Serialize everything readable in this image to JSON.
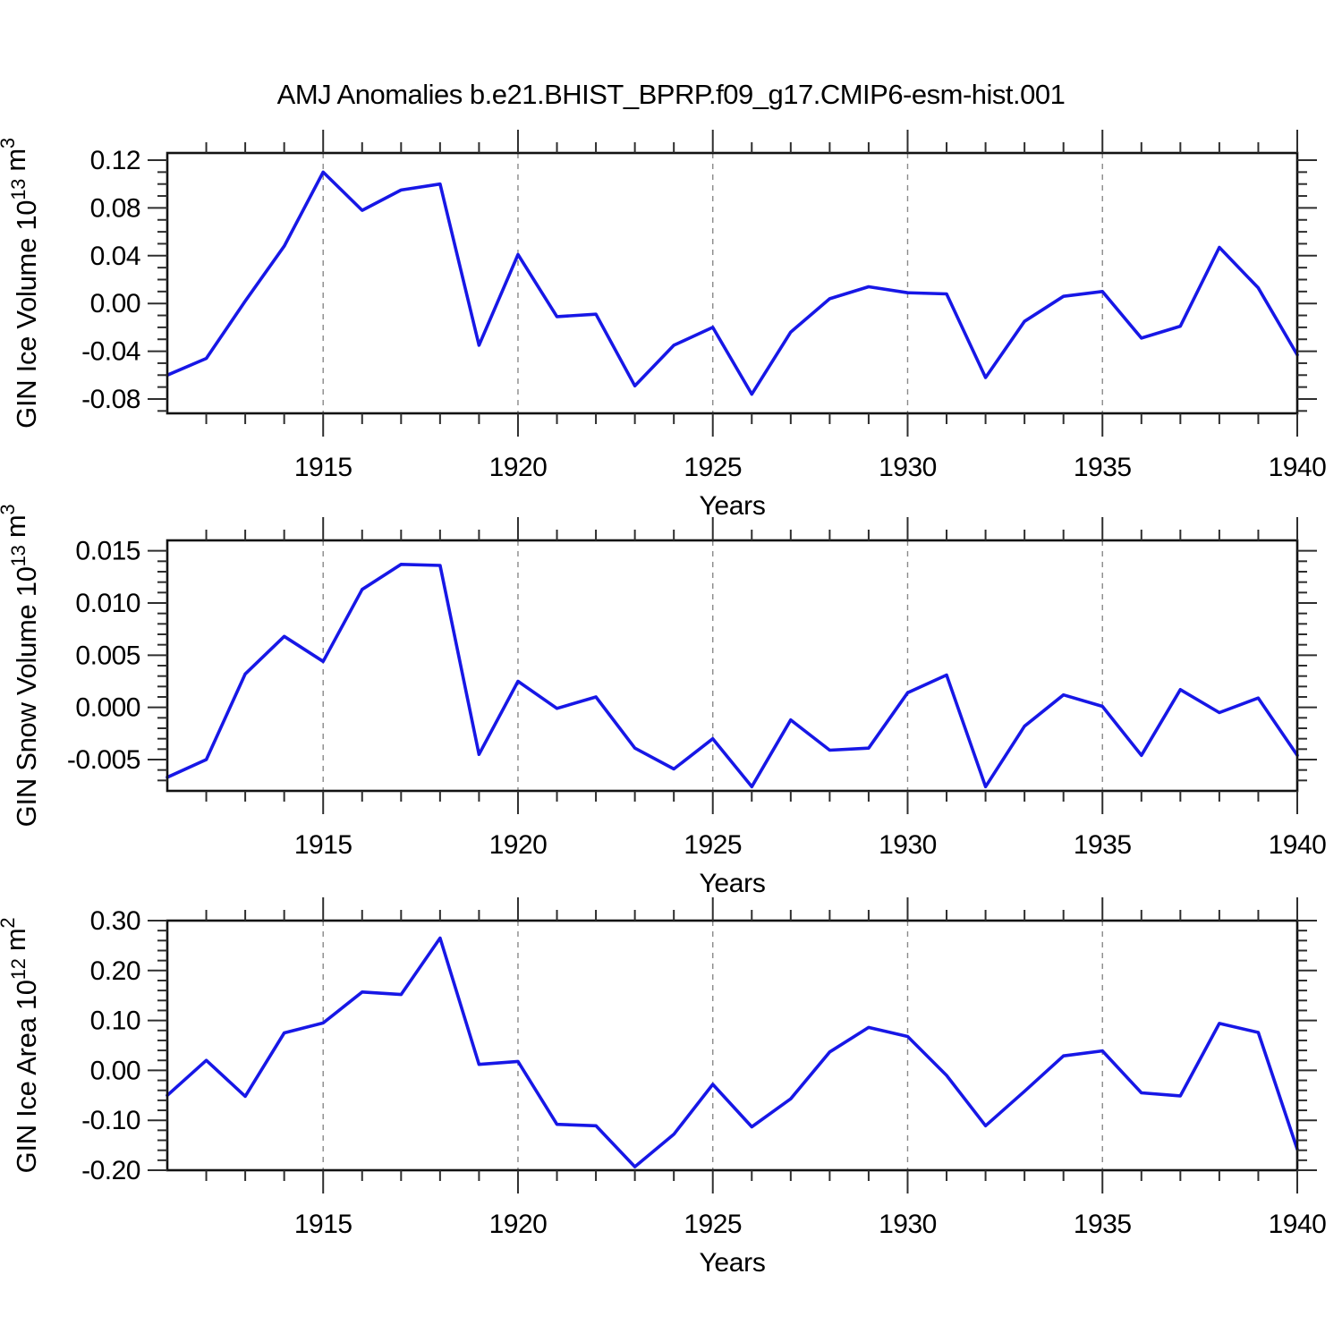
{
  "title": "AMJ Anomalies b.e21.BHIST_BPRP.f09_g17.CMIP6-esm-hist.001",
  "colors": {
    "line": "#1717e6",
    "axis": "#121212",
    "grid": "#8a8a8a",
    "tick": "#2e2e2e",
    "text": "#000000",
    "background": "#ffffff"
  },
  "chart_data": [
    {
      "type": "line",
      "title": "",
      "xlabel": "Years",
      "ylabel": "GIN Ice Volume 10^13 m^3",
      "ylabel_parts": [
        {
          "t": "GIN Ice Volume 10"
        },
        {
          "t": "13",
          "sup": true
        },
        {
          "t": " m"
        },
        {
          "t": "3",
          "sup": true
        }
      ],
      "x": [
        1911,
        1912,
        1913,
        1914,
        1915,
        1916,
        1917,
        1918,
        1919,
        1920,
        1921,
        1922,
        1923,
        1924,
        1925,
        1926,
        1927,
        1928,
        1929,
        1930,
        1931,
        1932,
        1933,
        1934,
        1935,
        1936,
        1937,
        1938,
        1939,
        1940
      ],
      "values": [
        -0.06,
        -0.046,
        0.002,
        0.048,
        0.11,
        0.078,
        0.095,
        0.1,
        -0.035,
        0.041,
        -0.011,
        -0.009,
        -0.069,
        -0.035,
        -0.02,
        -0.076,
        -0.024,
        0.004,
        0.014,
        0.009,
        0.008,
        -0.062,
        -0.015,
        0.006,
        0.01,
        -0.029,
        -0.019,
        0.047,
        0.013,
        -0.043
      ],
      "xlim": [
        1911,
        1940
      ],
      "ylim": [
        -0.092,
        0.126
      ],
      "xticks": [
        1915,
        1920,
        1925,
        1930,
        1935,
        1940
      ],
      "xtick_labels": [
        "1915",
        "1920",
        "1925",
        "1930",
        "1935",
        "1940"
      ],
      "x_minor_step": 1,
      "grid_years": [
        1915,
        1920,
        1925,
        1930,
        1935
      ],
      "ytick_values": [
        0.12,
        0.08,
        0.04,
        0.0,
        -0.04,
        -0.08
      ],
      "ytick_labels": [
        "0.12",
        "0.08",
        "0.04",
        "0.00",
        "-0.04",
        "-0.08"
      ],
      "y_minor_step": 0.01,
      "grid": true,
      "legend": "none"
    },
    {
      "type": "line",
      "title": "",
      "xlabel": "Years",
      "ylabel": "GIN Snow Volume 10^13 m^3",
      "ylabel_parts": [
        {
          "t": "GIN Snow Volume 10"
        },
        {
          "t": "13",
          "sup": true
        },
        {
          "t": " m"
        },
        {
          "t": "3",
          "sup": true
        }
      ],
      "x": [
        1911,
        1912,
        1913,
        1914,
        1915,
        1916,
        1917,
        1918,
        1919,
        1920,
        1921,
        1922,
        1923,
        1924,
        1925,
        1926,
        1927,
        1928,
        1929,
        1930,
        1931,
        1932,
        1933,
        1934,
        1935,
        1936,
        1937,
        1938,
        1939,
        1940
      ],
      "values": [
        -0.0067,
        -0.005,
        0.0032,
        0.0068,
        0.0044,
        0.0113,
        0.0137,
        0.0136,
        -0.0045,
        0.0025,
        -0.0001,
        0.001,
        -0.0039,
        -0.0059,
        -0.003,
        -0.0076,
        -0.0012,
        -0.0041,
        -0.0039,
        0.0014,
        0.0031,
        -0.0076,
        -0.0018,
        0.0012,
        0.0001,
        -0.0046,
        0.0017,
        -0.0005,
        0.0009,
        -0.0046
      ],
      "xlim": [
        1911,
        1940
      ],
      "ylim": [
        -0.008,
        0.016
      ],
      "xticks": [
        1915,
        1920,
        1925,
        1930,
        1935,
        1940
      ],
      "xtick_labels": [
        "1915",
        "1920",
        "1925",
        "1930",
        "1935",
        "1940"
      ],
      "x_minor_step": 1,
      "grid_years": [
        1915,
        1920,
        1925,
        1930,
        1935
      ],
      "ytick_values": [
        0.015,
        0.01,
        0.005,
        0.0,
        -0.005
      ],
      "ytick_labels": [
        "0.015",
        "0.010",
        "0.005",
        "0.000",
        "-0.005"
      ],
      "y_minor_step": 0.001,
      "grid": true,
      "legend": "none"
    },
    {
      "type": "line",
      "title": "",
      "xlabel": "Years",
      "ylabel": "GIN Ice Area 10^12 m^2",
      "ylabel_parts": [
        {
          "t": "GIN Ice Area 10"
        },
        {
          "t": "12",
          "sup": true
        },
        {
          "t": " m"
        },
        {
          "t": "2",
          "sup": true
        }
      ],
      "x": [
        1911,
        1912,
        1913,
        1914,
        1915,
        1916,
        1917,
        1918,
        1919,
        1920,
        1921,
        1922,
        1923,
        1924,
        1925,
        1926,
        1927,
        1928,
        1929,
        1930,
        1931,
        1932,
        1933,
        1934,
        1935,
        1936,
        1937,
        1938,
        1939,
        1940
      ],
      "values": [
        -0.05,
        0.02,
        -0.052,
        0.075,
        0.095,
        0.157,
        0.152,
        0.265,
        0.012,
        0.018,
        -0.108,
        -0.111,
        -0.193,
        -0.128,
        -0.028,
        -0.113,
        -0.057,
        0.037,
        0.086,
        0.068,
        -0.01,
        -0.111,
        -0.042,
        0.029,
        0.039,
        -0.045,
        -0.051,
        0.094,
        0.076,
        -0.158
      ],
      "xlim": [
        1911,
        1940
      ],
      "ylim": [
        -0.2,
        0.3
      ],
      "xticks": [
        1915,
        1920,
        1925,
        1930,
        1935,
        1940
      ],
      "xtick_labels": [
        "1915",
        "1920",
        "1925",
        "1930",
        "1935",
        "1940"
      ],
      "x_minor_step": 1,
      "grid_years": [
        1915,
        1920,
        1925,
        1930,
        1935
      ],
      "ytick_values": [
        0.3,
        0.2,
        0.1,
        0.0,
        -0.1,
        -0.2
      ],
      "ytick_labels": [
        "0.30",
        "0.20",
        "0.10",
        "0.00",
        "-0.10",
        "-0.20"
      ],
      "y_minor_step": 0.02,
      "grid": true,
      "legend": "none"
    }
  ]
}
